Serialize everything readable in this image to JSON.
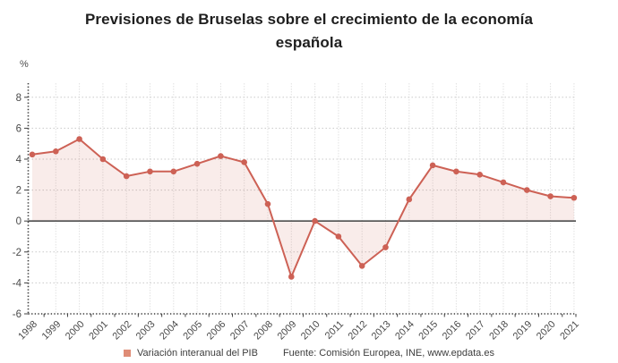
{
  "title": "Previsiones de Bruselas sobre el crecimiento de la economía española",
  "legend": {
    "label": "Variación interanual del PIB",
    "marker_color": "#df8c76"
  },
  "source": {
    "text": "Fuente: Comisión Europea, INE, www.epdata.es"
  },
  "chart_data": {
    "type": "line",
    "title": "Previsiones de Bruselas sobre el crecimiento de la economía española",
    "categories": [
      "1998",
      "1999",
      "2000",
      "2001",
      "2002",
      "2003",
      "2004",
      "2005",
      "2006",
      "2007",
      "2008",
      "2009",
      "2010",
      "2011",
      "2012",
      "2013",
      "2014",
      "2015",
      "2016",
      "2017",
      "2018",
      "2019",
      "2020",
      "2021"
    ],
    "series": [
      {
        "name": "Variación interanual del PIB",
        "values": [
          4.3,
          4.5,
          5.3,
          4.0,
          2.9,
          3.2,
          3.2,
          3.7,
          4.2,
          3.8,
          1.1,
          -3.6,
          0.0,
          -1.0,
          -2.9,
          -1.7,
          1.4,
          3.6,
          3.2,
          3.0,
          2.5,
          2.0,
          1.6,
          1.5
        ]
      }
    ],
    "xlabel": "",
    "ylabel": "%",
    "ylim": [
      -6,
      8
    ],
    "yticks": [
      8,
      6,
      4,
      2,
      0,
      -2,
      -4,
      -6
    ],
    "baseline": 0,
    "grid": true,
    "legend_position": "bottom",
    "line_color": "#cd6155",
    "marker_color": "#cd6155",
    "area_fill": "rgba(205,97,85,0.12)",
    "axis_color": "#3f3f3f",
    "grid_color_h": "#c9c9c9",
    "grid_color_v": "#e2e2e2",
    "tick_label_color": "#4a4a4a"
  }
}
